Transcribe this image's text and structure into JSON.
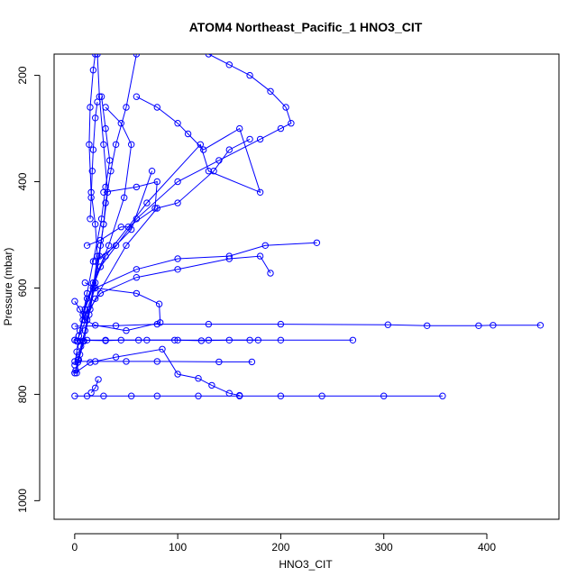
{
  "chart_data": {
    "type": "line",
    "title": "ATOM4 Northeast_Pacific_1 HNO3_CIT",
    "xlabel": "HNO3_CIT",
    "ylabel": "Pressure (mbar)",
    "xlim": [
      -20,
      470
    ],
    "ylim": [
      1035,
      160
    ],
    "y_inverted": true,
    "xticks": [
      0,
      100,
      200,
      300,
      400
    ],
    "yticks": [
      200,
      400,
      600,
      800,
      1000
    ],
    "grid": false,
    "legend": "none",
    "colors": {
      "series": "#0000ff",
      "axes": "#000000",
      "background": "#ffffff"
    },
    "marker": "open-circle",
    "series": [
      {
        "x": [
          0,
          3,
          5,
          8,
          12,
          18,
          25,
          28,
          30,
          35,
          40,
          50,
          60
        ],
        "y": [
          760,
          740,
          725,
          700,
          660,
          600,
          520,
          480,
          440,
          380,
          330,
          260,
          160
        ]
      },
      {
        "x": [
          2,
          4,
          9,
          14,
          18,
          22,
          20,
          16,
          14,
          15,
          18,
          20
        ],
        "y": [
          760,
          735,
          700,
          650,
          600,
          540,
          480,
          420,
          330,
          260,
          190,
          160
        ]
      },
      {
        "x": [
          1,
          3,
          6,
          10,
          15,
          20,
          24,
          28,
          32,
          28,
          24,
          22
        ],
        "y": [
          755,
          735,
          710,
          680,
          640,
          590,
          540,
          480,
          420,
          330,
          240,
          160
        ]
      },
      {
        "x": [
          0,
          2,
          4,
          8,
          12,
          18,
          26,
          30,
          34,
          30,
          26
        ],
        "y": [
          745,
          720,
          690,
          650,
          610,
          550,
          470,
          410,
          360,
          300,
          240
        ]
      },
      {
        "x": [
          3,
          10,
          25,
          60,
          100,
          140,
          180,
          200,
          210,
          205,
          190,
          170,
          150,
          130
        ],
        "y": [
          700,
          640,
          560,
          470,
          400,
          360,
          320,
          300,
          290,
          260,
          230,
          200,
          180,
          160
        ]
      },
      {
        "x": [
          5,
          12,
          30,
          70,
          122,
          130,
          180,
          160,
          125,
          110,
          100,
          80,
          60
        ],
        "y": [
          680,
          620,
          540,
          440,
          330,
          380,
          420,
          300,
          340,
          310,
          290,
          260,
          240
        ]
      },
      {
        "x": [
          2,
          20,
          50,
          80,
          100,
          135,
          150,
          170
        ],
        "y": [
          700,
          620,
          520,
          450,
          440,
          380,
          340,
          320
        ]
      },
      {
        "x": [
          8,
          20,
          60,
          100,
          150,
          185,
          235
        ],
        "y": [
          660,
          600,
          565,
          545,
          540,
          520,
          515
        ]
      },
      {
        "x": [
          10,
          25,
          60,
          100,
          150,
          180,
          190
        ],
        "y": [
          650,
          610,
          580,
          565,
          545,
          540,
          572
        ]
      },
      {
        "x": [
          0,
          40,
          80,
          130,
          200,
          304,
          342,
          392,
          406,
          452
        ],
        "y": [
          672,
          671,
          668,
          668,
          668,
          669,
          671,
          671,
          670,
          670
        ]
      },
      {
        "x": [
          0,
          12,
          30,
          62,
          100,
          130,
          200,
          270
        ],
        "y": [
          698,
          698,
          698,
          698,
          698,
          698,
          698,
          698
        ]
      },
      {
        "x": [
          0,
          30,
          45,
          70,
          97,
          123,
          150,
          170,
          178
        ],
        "y": [
          698,
          699,
          698,
          698,
          698,
          699,
          698,
          698,
          698
        ]
      },
      {
        "x": [
          0,
          12,
          28,
          55,
          80,
          120,
          160,
          200,
          240,
          300,
          357
        ],
        "y": [
          803,
          803,
          803,
          803,
          803,
          803,
          803,
          803,
          803,
          803,
          803
        ]
      },
      {
        "x": [
          0,
          20,
          50,
          80,
          140,
          172
        ],
        "y": [
          738,
          738,
          738,
          738,
          739,
          739
        ]
      },
      {
        "x": [
          0,
          15,
          40,
          85,
          100,
          120,
          133,
          150,
          160
        ],
        "y": [
          760,
          740,
          730,
          715,
          762,
          770,
          783,
          798,
          802
        ]
      },
      {
        "x": [
          16,
          20,
          23
        ],
        "y": [
          797,
          788,
          772
        ]
      },
      {
        "x": [
          0,
          5,
          10,
          20,
          50,
          83,
          82,
          60,
          20,
          10
        ],
        "y": [
          625,
          640,
          660,
          670,
          680,
          665,
          630,
          610,
          600,
          590
        ]
      },
      {
        "x": [
          12,
          25,
          45,
          52,
          78,
          80,
          60,
          28
        ],
        "y": [
          520,
          510,
          485,
          485,
          450,
          400,
          410,
          420
        ]
      },
      {
        "x": [
          20,
          40,
          55,
          75
        ],
        "y": [
          550,
          520,
          490,
          380
        ]
      },
      {
        "x": [
          4,
          10,
          18,
          33,
          48,
          55,
          45,
          30
        ],
        "y": [
          690,
          640,
          590,
          520,
          430,
          330,
          290,
          260
        ]
      },
      {
        "x": [
          15,
          16,
          17,
          18,
          20,
          22
        ],
        "y": [
          470,
          430,
          380,
          340,
          280,
          250
        ]
      }
    ]
  }
}
